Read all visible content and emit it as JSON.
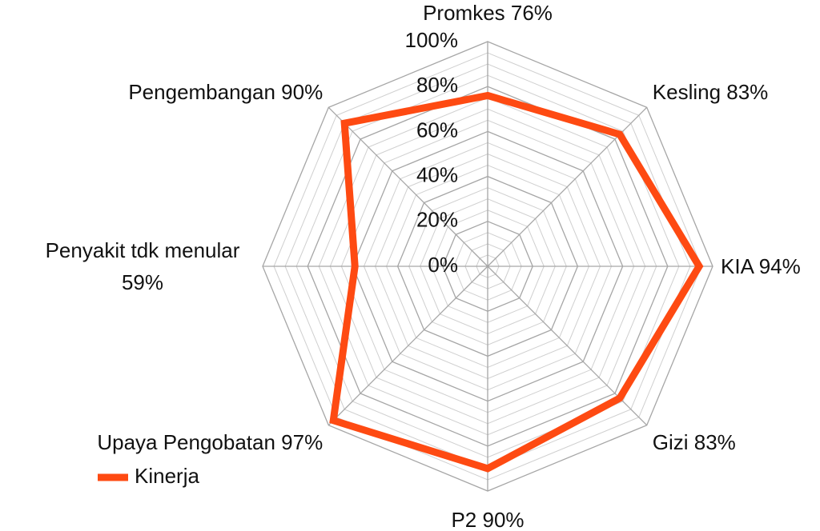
{
  "chart_data": {
    "type": "radar",
    "categories": [
      "Promkes 76%",
      "Kesling 83%",
      "KIA 94%",
      "Gizi 83%",
      "P2 90%",
      "Upaya Pengobatan 97%",
      "Penyakit tdk menular 59%",
      "Pengembangan 90%"
    ],
    "series": [
      {
        "name": "Kinerja",
        "color": "#fe4a12",
        "values": [
          76,
          83,
          94,
          83,
          90,
          97,
          59,
          90
        ]
      }
    ],
    "ylim": [
      0,
      100
    ],
    "yticks": [
      {
        "value": 0,
        "label": "0%"
      },
      {
        "value": 20,
        "label": "20%"
      },
      {
        "value": 40,
        "label": "40%"
      },
      {
        "value": 60,
        "label": "60%"
      },
      {
        "value": 80,
        "label": "80%"
      },
      {
        "value": 100,
        "label": "100%"
      }
    ],
    "yminorticks": [
      5,
      10,
      15,
      25,
      30,
      35,
      45,
      50,
      55,
      65,
      70,
      75,
      85,
      90,
      95
    ],
    "grid": true,
    "legend": "bottom-left"
  }
}
